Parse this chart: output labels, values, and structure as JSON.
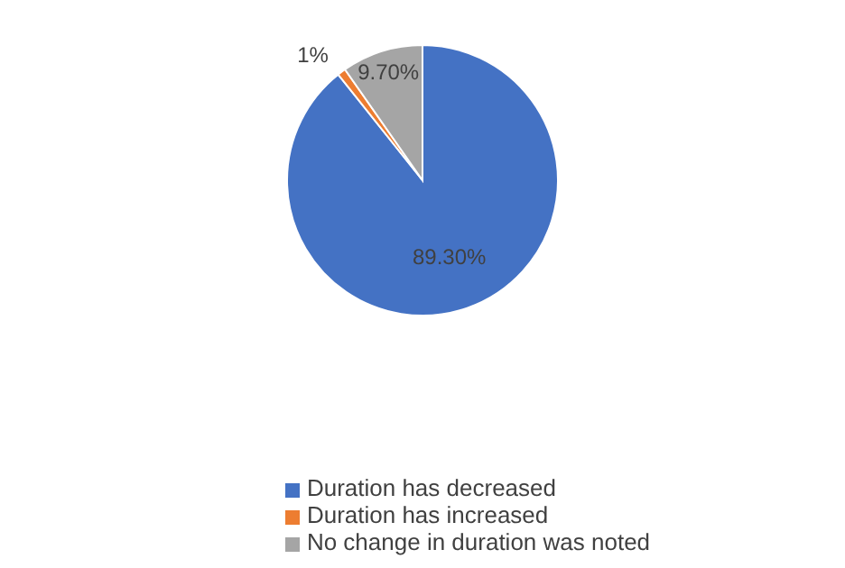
{
  "chart_data": {
    "type": "pie",
    "categories": [
      "Duration has decreased",
      "Duration has increased",
      "No change in duration was noted"
    ],
    "values": [
      89.3,
      1,
      9.7
    ],
    "colors": [
      "#4472c4",
      "#ed7d31",
      "#a5a5a5"
    ],
    "value_labels": [
      "89.30%",
      "1%",
      "9.70%"
    ],
    "legend": "bottom"
  }
}
